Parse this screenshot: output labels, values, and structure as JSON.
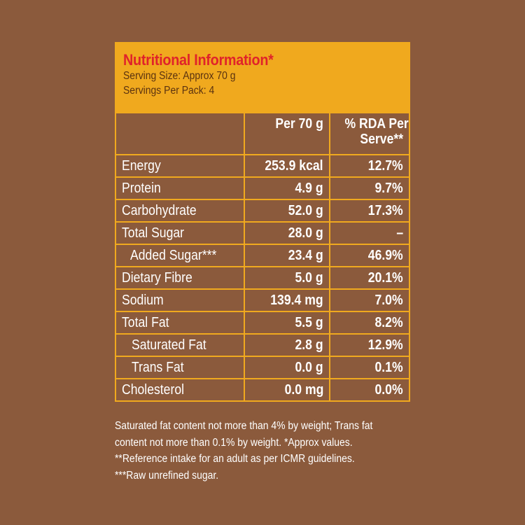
{
  "header": {
    "title": "Nutritional Information*",
    "serving_size": "Serving Size: Approx 70 g",
    "servings_per_pack": "Servings Per Pack: 4"
  },
  "table": {
    "columns": [
      "",
      "Per 70 g",
      "% RDA Per Serve**"
    ],
    "col_rda_line1": "% RDA Per",
    "col_rda_line2": "Serve**",
    "rows": [
      {
        "nutrient": "Energy",
        "per_serve": "253.9 kcal",
        "rda": "12.7%"
      },
      {
        "nutrient": "Protein",
        "per_serve": "4.9 g",
        "rda": "9.7%"
      },
      {
        "nutrient": "Carbohydrate",
        "per_serve": "52.0 g",
        "rda": "17.3%"
      },
      {
        "nutrient": "Total Sugar",
        "per_serve": "28.0 g",
        "rda": "–"
      },
      {
        "nutrient": "Added Sugar***",
        "per_serve": "23.4 g",
        "rda": "46.9%"
      },
      {
        "nutrient": "Dietary Fibre",
        "per_serve": "5.0 g",
        "rda": "20.1%"
      },
      {
        "nutrient": "Sodium",
        "per_serve": "139.4 mg",
        "rda": "7.0%"
      },
      {
        "nutrient": "Total Fat",
        "per_serve": "5.5 g",
        "rda": "8.2%"
      },
      {
        "nutrient": "Saturated Fat",
        "per_serve": "2.8 g",
        "rda": "12.9%"
      },
      {
        "nutrient": "Trans Fat",
        "per_serve": "0.0 g",
        "rda": "0.1%"
      },
      {
        "nutrient": "Cholesterol",
        "per_serve": "0.0 mg",
        "rda": "0.0%"
      }
    ]
  },
  "footnote": "Saturated fat content not more than 4% by weight; Trans fat content not more than 0.1% by weight. *Approx values. **Reference intake for an adult as per ICMR guidelines. ***Raw unrefined sugar.",
  "colors": {
    "background": "#8B5A3C",
    "header_bg": "#F0A91E",
    "title": "#E0232A",
    "grid": "#F0A91E",
    "text": "#FFFFFF"
  }
}
